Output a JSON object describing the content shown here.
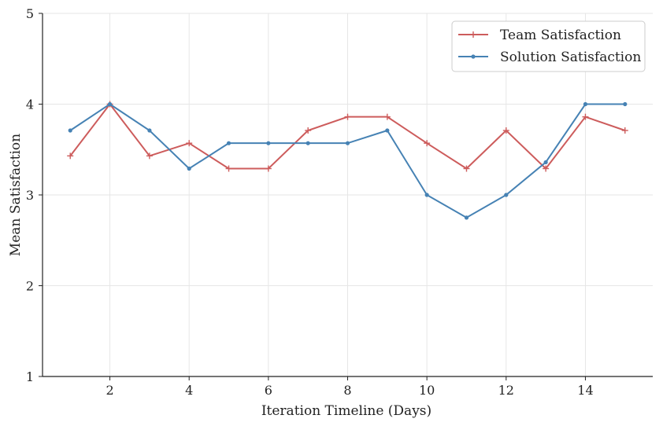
{
  "chart_data": {
    "type": "line",
    "xlabel": "Iteration Timeline (Days)",
    "ylabel": "Mean Satisfaction",
    "xlim": [
      0.3,
      15.7
    ],
    "ylim": [
      1,
      5
    ],
    "xticks": [
      2,
      4,
      6,
      8,
      10,
      12,
      14
    ],
    "yticks": [
      1,
      2,
      3,
      4,
      5
    ],
    "grid": true,
    "legend_position": "top-right",
    "x": [
      1,
      2,
      3,
      4,
      5,
      6,
      7,
      8,
      9,
      10,
      11,
      12,
      13,
      14,
      15
    ],
    "series": [
      {
        "name": "Team Satisfaction",
        "color": "#cd5c5c",
        "marker": "plus",
        "values": [
          3.43,
          4.0,
          3.43,
          3.57,
          3.29,
          3.29,
          3.71,
          3.86,
          3.86,
          3.57,
          3.29,
          3.71,
          3.29,
          3.86,
          3.71
        ]
      },
      {
        "name": "Solution Satisfaction",
        "color": "#4682b4",
        "marker": "dot",
        "values": [
          3.71,
          4.0,
          3.71,
          3.29,
          3.57,
          3.57,
          3.57,
          3.57,
          3.71,
          3.0,
          2.75,
          3.0,
          3.36,
          4.0,
          4.0
        ]
      }
    ]
  }
}
